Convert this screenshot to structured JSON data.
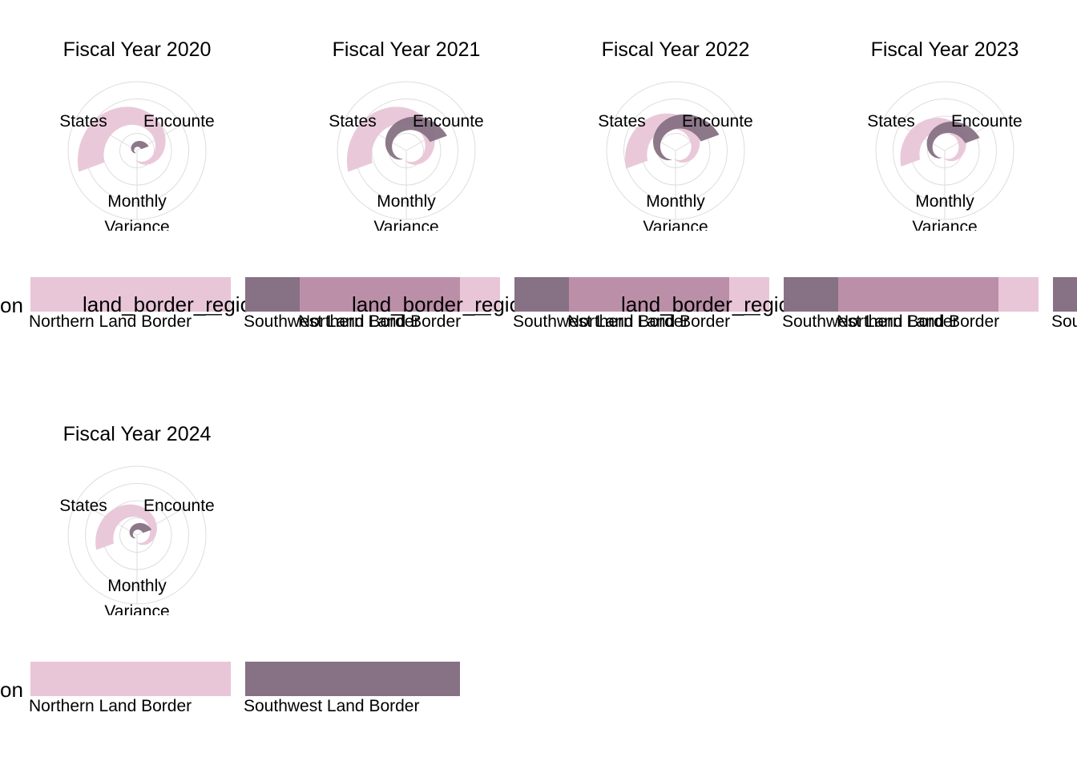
{
  "chart_data": [
    {
      "type": "polar-area",
      "title": "Fiscal Year 2020",
      "axis_labels": [
        "States",
        "Encounte",
        "Monthly",
        "Variance"
      ],
      "series": [
        {
          "name": "Northern Land Border",
          "values": [
            1.0,
            0.95
          ]
        },
        {
          "name": "Southwest Land Border",
          "values": [
            0.18,
            0.2
          ]
        }
      ]
    },
    {
      "type": "polar-area",
      "title": "Fiscal Year 2021",
      "axis_labels": [
        "States",
        "Encounte",
        "Monthly",
        "Variance"
      ],
      "series": [
        {
          "name": "Northern Land Border",
          "values": [
            1.0,
            0.9
          ]
        },
        {
          "name": "Southwest Land Border",
          "values": [
            0.55,
            0.7
          ]
        }
      ]
    },
    {
      "type": "polar-area",
      "title": "Fiscal Year 2022",
      "axis_labels": [
        "States",
        "Encounte",
        "Monthly",
        "Variance"
      ],
      "series": [
        {
          "name": "Northern Land Border",
          "values": [
            0.85,
            0.8
          ]
        },
        {
          "name": "Southwest Land Border",
          "values": [
            0.6,
            0.75
          ]
        }
      ]
    },
    {
      "type": "polar-area",
      "title": "Fiscal Year 2023",
      "axis_labels": [
        "States",
        "Encounte",
        "Monthly",
        "Variance"
      ],
      "series": [
        {
          "name": "Northern Land Border",
          "values": [
            0.75,
            0.7
          ]
        },
        {
          "name": "Southwest Land Border",
          "values": [
            0.45,
            0.6
          ]
        }
      ]
    },
    {
      "type": "polar-area",
      "title": "Fiscal Year 2024",
      "axis_labels": [
        "States",
        "Encounte",
        "Monthly",
        "Variance"
      ],
      "series": [
        {
          "name": "Northern Land Border",
          "values": [
            0.7,
            0.65
          ]
        },
        {
          "name": "Southwest Land Border",
          "values": [
            0.22,
            0.25
          ]
        }
      ]
    }
  ],
  "legend": {
    "title": "land_border_region",
    "title_fragment": "on",
    "entries": [
      {
        "label": "Northern Land Border",
        "color": "#e8c6d7"
      },
      {
        "label": "Southwest Land Border",
        "color": "#877184"
      }
    ],
    "mid_color": "#bc8fa8",
    "dash": "—"
  },
  "colors": {
    "northern": "#e8c6d7",
    "southwest": "#877184",
    "grid": "#dddddd"
  }
}
